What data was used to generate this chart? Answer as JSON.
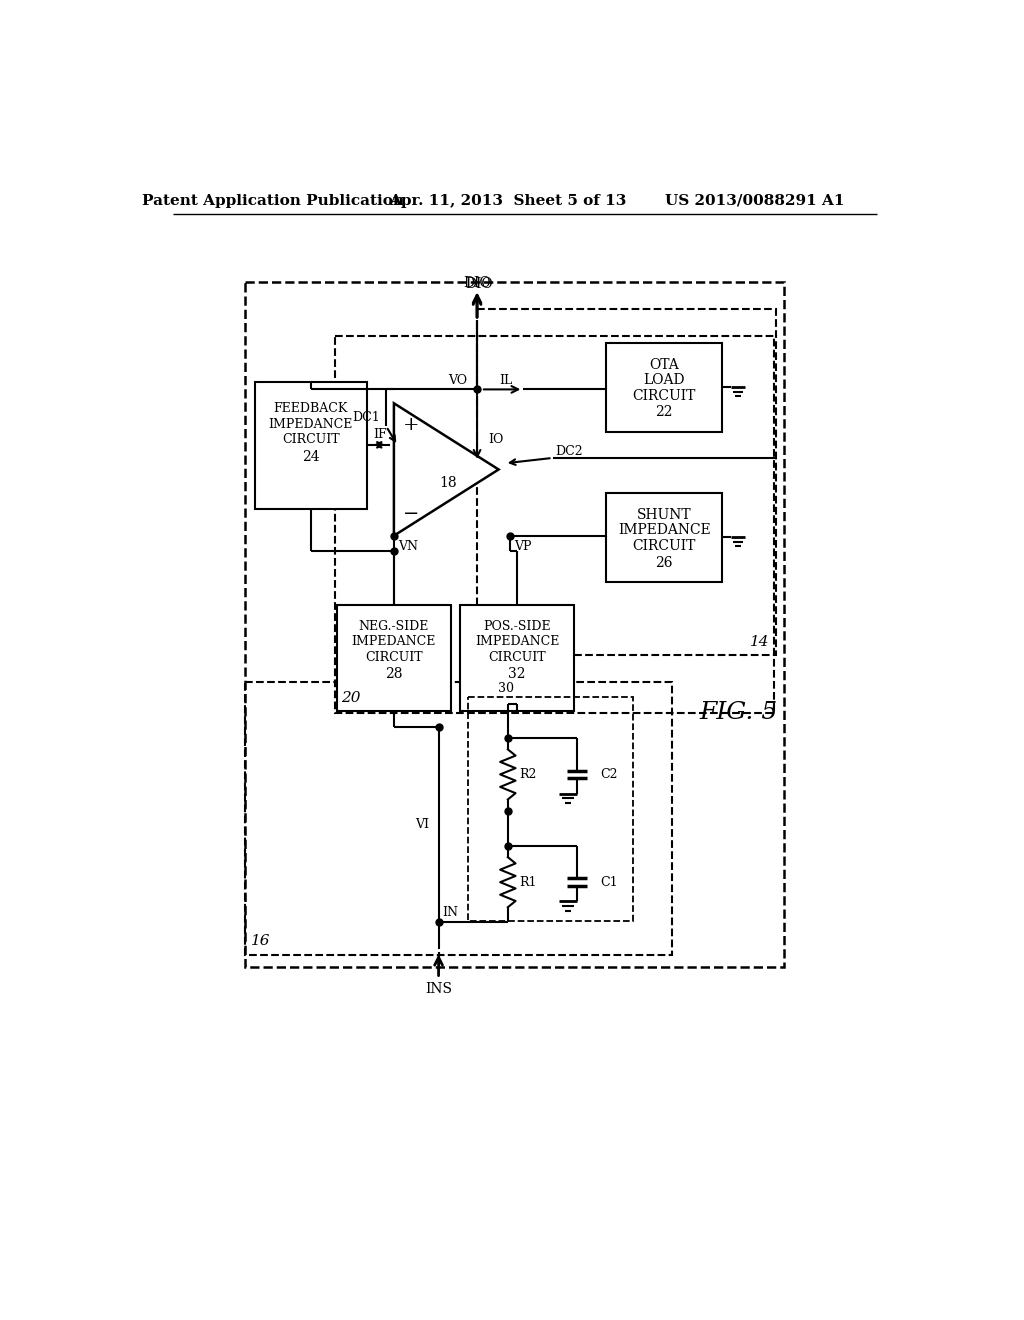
{
  "header_left": "Patent Application Publication",
  "header_center": "Apr. 11, 2013  Sheet 5 of 13",
  "header_right": "US 2013/0088291 A1",
  "bg_color": "#ffffff",
  "fig_label": "FIG. 5"
}
